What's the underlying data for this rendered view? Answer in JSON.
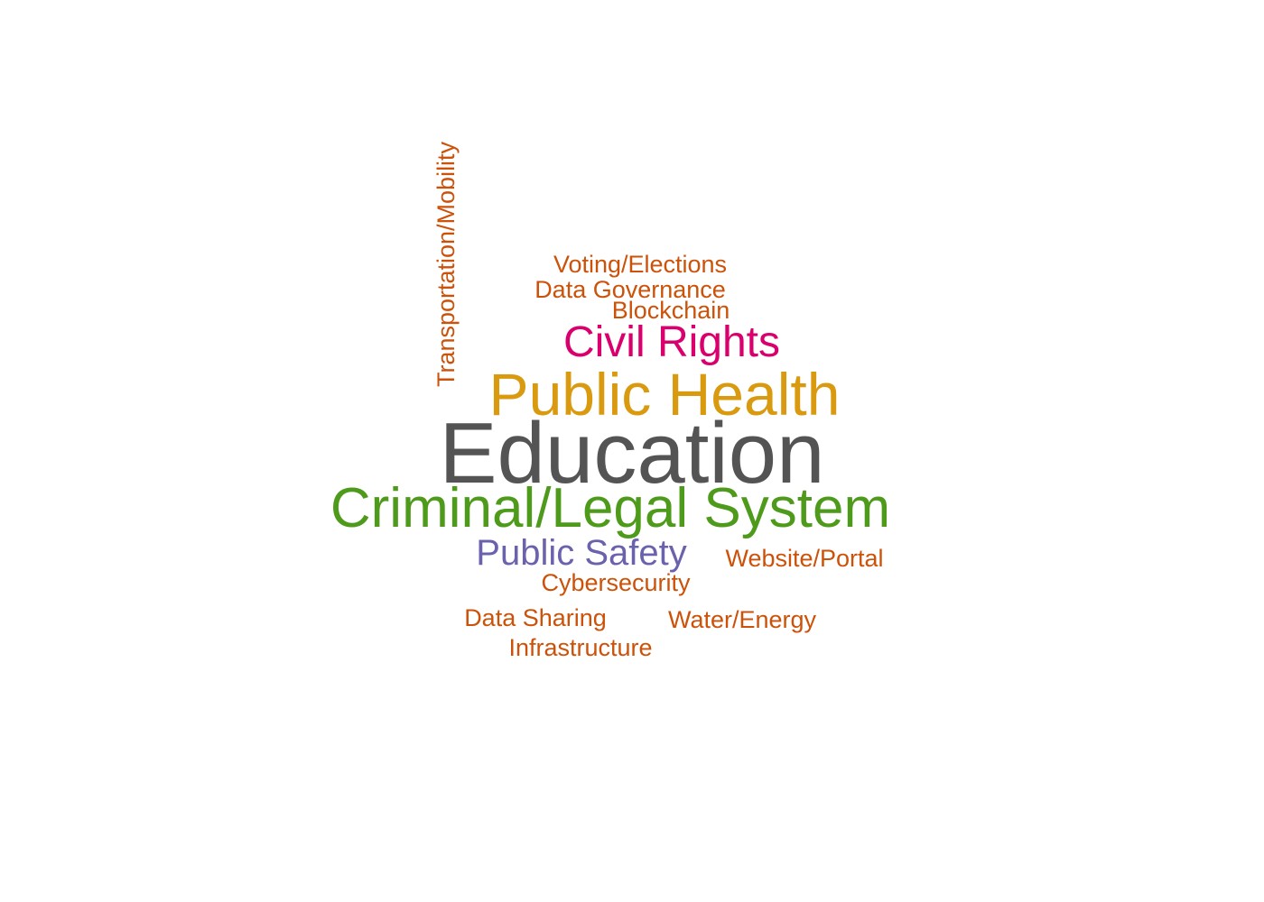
{
  "chart_data": {
    "type": "wordcloud",
    "colors": {
      "Education": "#545454",
      "Public Health": "#d99a0f",
      "Criminal/Legal System": "#4e9a1a",
      "Civil Rights": "#d9006e",
      "Public Safety": "#6a62ad",
      "Transportation/Mobility": "#cc5209",
      "Voting/Elections": "#cc5209",
      "Data Governance": "#cc5209",
      "Blockchain": "#cc5209",
      "Website/Portal": "#cc5209",
      "Cybersecurity": "#cc5209",
      "Data Sharing": "#cc5209",
      "Water/Energy": "#cc5209",
      "Infrastructure": "#cc5209"
    },
    "words": [
      {
        "text": "Education",
        "weight": 10
      },
      {
        "text": "Public Health",
        "weight": 7
      },
      {
        "text": "Criminal/Legal System",
        "weight": 6
      },
      {
        "text": "Civil Rights",
        "weight": 4
      },
      {
        "text": "Public Safety",
        "weight": 3
      },
      {
        "text": "Transportation/Mobility",
        "weight": 1
      },
      {
        "text": "Voting/Elections",
        "weight": 1
      },
      {
        "text": "Data Governance",
        "weight": 1
      },
      {
        "text": "Blockchain",
        "weight": 1
      },
      {
        "text": "Website/Portal",
        "weight": 1
      },
      {
        "text": "Cybersecurity",
        "weight": 1
      },
      {
        "text": "Data Sharing",
        "weight": 1
      },
      {
        "text": "Water/Energy",
        "weight": 1
      },
      {
        "text": "Infrastructure",
        "weight": 1
      }
    ]
  }
}
